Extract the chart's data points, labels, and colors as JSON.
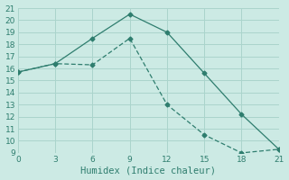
{
  "xlabel": "Humidex (Indice chaleur)",
  "line1_x": [
    0,
    3,
    6,
    9,
    12,
    15,
    18,
    21
  ],
  "line1_y": [
    15.7,
    16.4,
    18.5,
    20.5,
    19.0,
    15.6,
    12.2,
    9.3
  ],
  "line2_x": [
    0,
    3,
    6,
    9,
    12,
    15,
    18,
    21
  ],
  "line2_y": [
    15.7,
    16.4,
    16.3,
    18.5,
    13.0,
    10.5,
    9.0,
    9.3
  ],
  "line_color": "#2e7d6e",
  "bg_color": "#cceae4",
  "grid_color": "#aad4cc",
  "xlim": [
    0,
    21
  ],
  "ylim": [
    9,
    21
  ],
  "xticks": [
    0,
    3,
    6,
    9,
    12,
    15,
    18,
    21
  ],
  "yticks": [
    9,
    10,
    11,
    12,
    13,
    14,
    15,
    16,
    17,
    18,
    19,
    20,
    21
  ],
  "tick_fontsize": 6.5,
  "xlabel_fontsize": 7.5
}
